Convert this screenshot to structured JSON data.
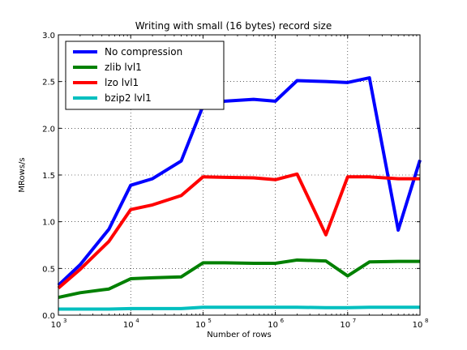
{
  "chart_data": {
    "type": "line",
    "title": "Writing with small (16 bytes) record size",
    "xlabel": "Number of rows",
    "ylabel": "MRows/s",
    "x_scale": "log",
    "xlim": [
      1000,
      100000000
    ],
    "ylim": [
      0.0,
      3.0
    ],
    "grid": true,
    "legend_position": "top-left",
    "x_ticks": [
      {
        "value": 1000,
        "base": "10",
        "exp": "3"
      },
      {
        "value": 10000,
        "base": "10",
        "exp": "4"
      },
      {
        "value": 100000,
        "base": "10",
        "exp": "5"
      },
      {
        "value": 1000000,
        "base": "10",
        "exp": "6"
      },
      {
        "value": 10000000,
        "base": "10",
        "exp": "7"
      },
      {
        "value": 100000000,
        "base": "10",
        "exp": "8"
      }
    ],
    "y_ticks": [
      {
        "value": 0.0,
        "label": "0.0"
      },
      {
        "value": 0.5,
        "label": "0.5"
      },
      {
        "value": 1.0,
        "label": "1.0"
      },
      {
        "value": 1.5,
        "label": "1.5"
      },
      {
        "value": 2.0,
        "label": "2.0"
      },
      {
        "value": 2.5,
        "label": "2.5"
      },
      {
        "value": 3.0,
        "label": "3.0"
      }
    ],
    "x": [
      1000,
      2000,
      5000,
      10000,
      20000,
      50000,
      100000,
      200000,
      500000,
      1000000,
      2000000,
      5000000,
      10000000,
      20000000,
      50000000,
      100000000
    ],
    "series": [
      {
        "name": "No compression",
        "color": "#0000ff",
        "values": [
          0.32,
          0.54,
          0.92,
          1.39,
          1.46,
          1.65,
          2.24,
          2.29,
          2.31,
          2.29,
          2.51,
          2.5,
          2.49,
          2.54,
          0.91,
          1.66
        ]
      },
      {
        "name": "zlib lvl1",
        "color": "#008000",
        "values": [
          0.19,
          0.24,
          0.28,
          0.39,
          0.4,
          0.41,
          0.56,
          0.56,
          0.555,
          0.555,
          0.59,
          0.58,
          0.42,
          0.57,
          0.575,
          0.575
        ]
      },
      {
        "name": "lzo lvl1",
        "color": "#ff0000",
        "values": [
          0.29,
          0.49,
          0.79,
          1.13,
          1.18,
          1.28,
          1.48,
          1.475,
          1.47,
          1.45,
          1.51,
          0.86,
          1.48,
          1.48,
          1.46,
          1.46
        ]
      },
      {
        "name": "bzip2 lvl1",
        "color": "#00bfbf",
        "values": [
          0.065,
          0.065,
          0.065,
          0.07,
          0.07,
          0.07,
          0.085,
          0.085,
          0.085,
          0.085,
          0.085,
          0.08,
          0.08,
          0.085,
          0.085,
          0.085
        ]
      }
    ]
  }
}
